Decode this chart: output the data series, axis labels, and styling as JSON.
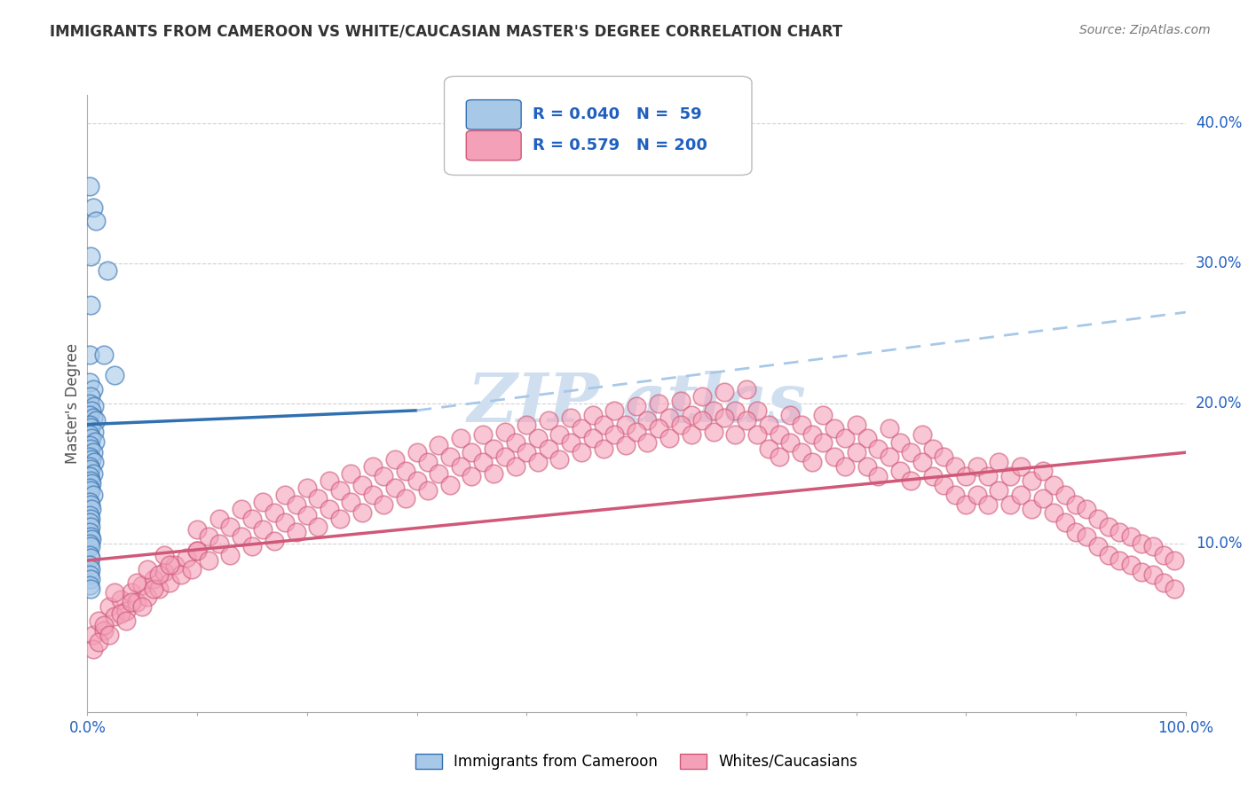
{
  "title": "IMMIGRANTS FROM CAMEROON VS WHITE/CAUCASIAN MASTER'S DEGREE CORRELATION CHART",
  "source": "Source: ZipAtlas.com",
  "ylabel": "Master's Degree",
  "right_yticks": [
    "10.0%",
    "20.0%",
    "30.0%",
    "40.0%"
  ],
  "right_ytick_vals": [
    0.1,
    0.2,
    0.3,
    0.4
  ],
  "color_blue": "#a8c8e8",
  "color_pink": "#f4a0b8",
  "line_blue": "#3070b0",
  "line_pink": "#d05878",
  "legend_text_color": "#2060c0",
  "watermark_color": "#d0dff0",
  "blue_scatter": [
    [
      0.002,
      0.355
    ],
    [
      0.005,
      0.34
    ],
    [
      0.008,
      0.33
    ],
    [
      0.003,
      0.305
    ],
    [
      0.018,
      0.295
    ],
    [
      0.003,
      0.27
    ],
    [
      0.002,
      0.235
    ],
    [
      0.015,
      0.235
    ],
    [
      0.025,
      0.22
    ],
    [
      0.002,
      0.215
    ],
    [
      0.005,
      0.21
    ],
    [
      0.003,
      0.205
    ],
    [
      0.002,
      0.2
    ],
    [
      0.006,
      0.198
    ],
    [
      0.004,
      0.195
    ],
    [
      0.002,
      0.192
    ],
    [
      0.005,
      0.19
    ],
    [
      0.008,
      0.188
    ],
    [
      0.002,
      0.185
    ],
    [
      0.003,
      0.183
    ],
    [
      0.006,
      0.18
    ],
    [
      0.002,
      0.178
    ],
    [
      0.004,
      0.175
    ],
    [
      0.007,
      0.173
    ],
    [
      0.002,
      0.17
    ],
    [
      0.003,
      0.168
    ],
    [
      0.005,
      0.165
    ],
    [
      0.002,
      0.162
    ],
    [
      0.004,
      0.16
    ],
    [
      0.006,
      0.158
    ],
    [
      0.002,
      0.155
    ],
    [
      0.003,
      0.153
    ],
    [
      0.005,
      0.15
    ],
    [
      0.002,
      0.148
    ],
    [
      0.003,
      0.145
    ],
    [
      0.004,
      0.143
    ],
    [
      0.002,
      0.14
    ],
    [
      0.003,
      0.138
    ],
    [
      0.005,
      0.135
    ],
    [
      0.002,
      0.13
    ],
    [
      0.003,
      0.128
    ],
    [
      0.004,
      0.125
    ],
    [
      0.002,
      0.12
    ],
    [
      0.003,
      0.118
    ],
    [
      0.002,
      0.115
    ],
    [
      0.003,
      0.112
    ],
    [
      0.002,
      0.108
    ],
    [
      0.003,
      0.105
    ],
    [
      0.004,
      0.103
    ],
    [
      0.002,
      0.1
    ],
    [
      0.003,
      0.098
    ],
    [
      0.002,
      0.092
    ],
    [
      0.003,
      0.09
    ],
    [
      0.002,
      0.085
    ],
    [
      0.003,
      0.082
    ],
    [
      0.002,
      0.078
    ],
    [
      0.003,
      0.075
    ],
    [
      0.002,
      0.07
    ],
    [
      0.003,
      0.068
    ]
  ],
  "pink_scatter": [
    [
      0.005,
      0.035
    ],
    [
      0.01,
      0.045
    ],
    [
      0.015,
      0.038
    ],
    [
      0.02,
      0.055
    ],
    [
      0.025,
      0.048
    ],
    [
      0.03,
      0.06
    ],
    [
      0.035,
      0.052
    ],
    [
      0.04,
      0.065
    ],
    [
      0.045,
      0.058
    ],
    [
      0.05,
      0.07
    ],
    [
      0.055,
      0.062
    ],
    [
      0.06,
      0.075
    ],
    [
      0.065,
      0.068
    ],
    [
      0.07,
      0.08
    ],
    [
      0.075,
      0.072
    ],
    [
      0.08,
      0.085
    ],
    [
      0.085,
      0.078
    ],
    [
      0.09,
      0.09
    ],
    [
      0.095,
      0.082
    ],
    [
      0.1,
      0.095
    ],
    [
      0.005,
      0.025
    ],
    [
      0.01,
      0.03
    ],
    [
      0.015,
      0.042
    ],
    [
      0.02,
      0.035
    ],
    [
      0.025,
      0.065
    ],
    [
      0.03,
      0.05
    ],
    [
      0.035,
      0.045
    ],
    [
      0.04,
      0.058
    ],
    [
      0.045,
      0.072
    ],
    [
      0.05,
      0.055
    ],
    [
      0.055,
      0.082
    ],
    [
      0.06,
      0.068
    ],
    [
      0.065,
      0.078
    ],
    [
      0.07,
      0.092
    ],
    [
      0.075,
      0.085
    ],
    [
      0.1,
      0.11
    ],
    [
      0.11,
      0.105
    ],
    [
      0.12,
      0.118
    ],
    [
      0.13,
      0.112
    ],
    [
      0.14,
      0.125
    ],
    [
      0.15,
      0.118
    ],
    [
      0.16,
      0.13
    ],
    [
      0.17,
      0.122
    ],
    [
      0.18,
      0.135
    ],
    [
      0.19,
      0.128
    ],
    [
      0.2,
      0.14
    ],
    [
      0.21,
      0.132
    ],
    [
      0.22,
      0.145
    ],
    [
      0.23,
      0.138
    ],
    [
      0.24,
      0.15
    ],
    [
      0.25,
      0.142
    ],
    [
      0.26,
      0.155
    ],
    [
      0.27,
      0.148
    ],
    [
      0.28,
      0.16
    ],
    [
      0.29,
      0.152
    ],
    [
      0.3,
      0.165
    ],
    [
      0.31,
      0.158
    ],
    [
      0.32,
      0.17
    ],
    [
      0.33,
      0.162
    ],
    [
      0.34,
      0.175
    ],
    [
      0.35,
      0.165
    ],
    [
      0.36,
      0.178
    ],
    [
      0.37,
      0.168
    ],
    [
      0.38,
      0.18
    ],
    [
      0.39,
      0.172
    ],
    [
      0.4,
      0.185
    ],
    [
      0.41,
      0.175
    ],
    [
      0.42,
      0.188
    ],
    [
      0.43,
      0.178
    ],
    [
      0.44,
      0.19
    ],
    [
      0.45,
      0.182
    ],
    [
      0.46,
      0.192
    ],
    [
      0.47,
      0.185
    ],
    [
      0.48,
      0.195
    ],
    [
      0.49,
      0.185
    ],
    [
      0.5,
      0.198
    ],
    [
      0.51,
      0.188
    ],
    [
      0.52,
      0.2
    ],
    [
      0.53,
      0.19
    ],
    [
      0.54,
      0.202
    ],
    [
      0.55,
      0.192
    ],
    [
      0.56,
      0.205
    ],
    [
      0.57,
      0.195
    ],
    [
      0.58,
      0.208
    ],
    [
      0.59,
      0.195
    ],
    [
      0.6,
      0.21
    ],
    [
      0.61,
      0.195
    ],
    [
      0.62,
      0.185
    ],
    [
      0.63,
      0.178
    ],
    [
      0.64,
      0.192
    ],
    [
      0.65,
      0.185
    ],
    [
      0.66,
      0.178
    ],
    [
      0.67,
      0.192
    ],
    [
      0.68,
      0.182
    ],
    [
      0.69,
      0.175
    ],
    [
      0.7,
      0.185
    ],
    [
      0.71,
      0.175
    ],
    [
      0.72,
      0.168
    ],
    [
      0.73,
      0.182
    ],
    [
      0.74,
      0.172
    ],
    [
      0.75,
      0.165
    ],
    [
      0.76,
      0.178
    ],
    [
      0.77,
      0.168
    ],
    [
      0.78,
      0.162
    ],
    [
      0.1,
      0.095
    ],
    [
      0.11,
      0.088
    ],
    [
      0.12,
      0.1
    ],
    [
      0.13,
      0.092
    ],
    [
      0.14,
      0.105
    ],
    [
      0.15,
      0.098
    ],
    [
      0.16,
      0.11
    ],
    [
      0.17,
      0.102
    ],
    [
      0.18,
      0.115
    ],
    [
      0.19,
      0.108
    ],
    [
      0.2,
      0.12
    ],
    [
      0.21,
      0.112
    ],
    [
      0.22,
      0.125
    ],
    [
      0.23,
      0.118
    ],
    [
      0.24,
      0.13
    ],
    [
      0.25,
      0.122
    ],
    [
      0.26,
      0.135
    ],
    [
      0.27,
      0.128
    ],
    [
      0.28,
      0.14
    ],
    [
      0.29,
      0.132
    ],
    [
      0.3,
      0.145
    ],
    [
      0.31,
      0.138
    ],
    [
      0.32,
      0.15
    ],
    [
      0.33,
      0.142
    ],
    [
      0.34,
      0.155
    ],
    [
      0.35,
      0.148
    ],
    [
      0.36,
      0.158
    ],
    [
      0.37,
      0.15
    ],
    [
      0.38,
      0.162
    ],
    [
      0.39,
      0.155
    ],
    [
      0.4,
      0.165
    ],
    [
      0.41,
      0.158
    ],
    [
      0.42,
      0.168
    ],
    [
      0.43,
      0.16
    ],
    [
      0.44,
      0.172
    ],
    [
      0.45,
      0.165
    ],
    [
      0.46,
      0.175
    ],
    [
      0.47,
      0.168
    ],
    [
      0.48,
      0.178
    ],
    [
      0.49,
      0.17
    ],
    [
      0.5,
      0.18
    ],
    [
      0.51,
      0.172
    ],
    [
      0.52,
      0.182
    ],
    [
      0.53,
      0.175
    ],
    [
      0.54,
      0.185
    ],
    [
      0.55,
      0.178
    ],
    [
      0.56,
      0.188
    ],
    [
      0.57,
      0.18
    ],
    [
      0.58,
      0.19
    ],
    [
      0.59,
      0.178
    ],
    [
      0.6,
      0.188
    ],
    [
      0.61,
      0.178
    ],
    [
      0.62,
      0.168
    ],
    [
      0.63,
      0.162
    ],
    [
      0.64,
      0.172
    ],
    [
      0.65,
      0.165
    ],
    [
      0.66,
      0.158
    ],
    [
      0.67,
      0.172
    ],
    [
      0.68,
      0.162
    ],
    [
      0.69,
      0.155
    ],
    [
      0.7,
      0.165
    ],
    [
      0.71,
      0.155
    ],
    [
      0.72,
      0.148
    ],
    [
      0.73,
      0.162
    ],
    [
      0.74,
      0.152
    ],
    [
      0.75,
      0.145
    ],
    [
      0.76,
      0.158
    ],
    [
      0.77,
      0.148
    ],
    [
      0.78,
      0.142
    ],
    [
      0.79,
      0.155
    ],
    [
      0.8,
      0.148
    ],
    [
      0.81,
      0.155
    ],
    [
      0.82,
      0.148
    ],
    [
      0.83,
      0.158
    ],
    [
      0.84,
      0.148
    ],
    [
      0.85,
      0.155
    ],
    [
      0.86,
      0.145
    ],
    [
      0.87,
      0.152
    ],
    [
      0.88,
      0.142
    ],
    [
      0.89,
      0.135
    ],
    [
      0.9,
      0.128
    ],
    [
      0.91,
      0.125
    ],
    [
      0.92,
      0.118
    ],
    [
      0.93,
      0.112
    ],
    [
      0.94,
      0.108
    ],
    [
      0.95,
      0.105
    ],
    [
      0.96,
      0.1
    ],
    [
      0.97,
      0.098
    ],
    [
      0.98,
      0.092
    ],
    [
      0.99,
      0.088
    ],
    [
      0.79,
      0.135
    ],
    [
      0.8,
      0.128
    ],
    [
      0.81,
      0.135
    ],
    [
      0.82,
      0.128
    ],
    [
      0.83,
      0.138
    ],
    [
      0.84,
      0.128
    ],
    [
      0.85,
      0.135
    ],
    [
      0.86,
      0.125
    ],
    [
      0.87,
      0.132
    ],
    [
      0.88,
      0.122
    ],
    [
      0.89,
      0.115
    ],
    [
      0.9,
      0.108
    ],
    [
      0.91,
      0.105
    ],
    [
      0.92,
      0.098
    ],
    [
      0.93,
      0.092
    ],
    [
      0.94,
      0.088
    ],
    [
      0.95,
      0.085
    ],
    [
      0.96,
      0.08
    ],
    [
      0.97,
      0.078
    ],
    [
      0.98,
      0.072
    ],
    [
      0.99,
      0.068
    ]
  ],
  "blue_solid_line": [
    [
      0.0,
      0.185
    ],
    [
      0.3,
      0.195
    ]
  ],
  "blue_dashed_line": [
    [
      0.3,
      0.195
    ],
    [
      1.0,
      0.265
    ]
  ],
  "pink_solid_line": [
    [
      0.0,
      0.088
    ],
    [
      1.0,
      0.165
    ]
  ],
  "xmin": 0.0,
  "xmax": 1.0,
  "ymin": -0.02,
  "ymax": 0.42,
  "grid_yticks": [
    0.1,
    0.2,
    0.3,
    0.4
  ],
  "grid_color": "#cccccc",
  "bg_color": "#ffffff"
}
